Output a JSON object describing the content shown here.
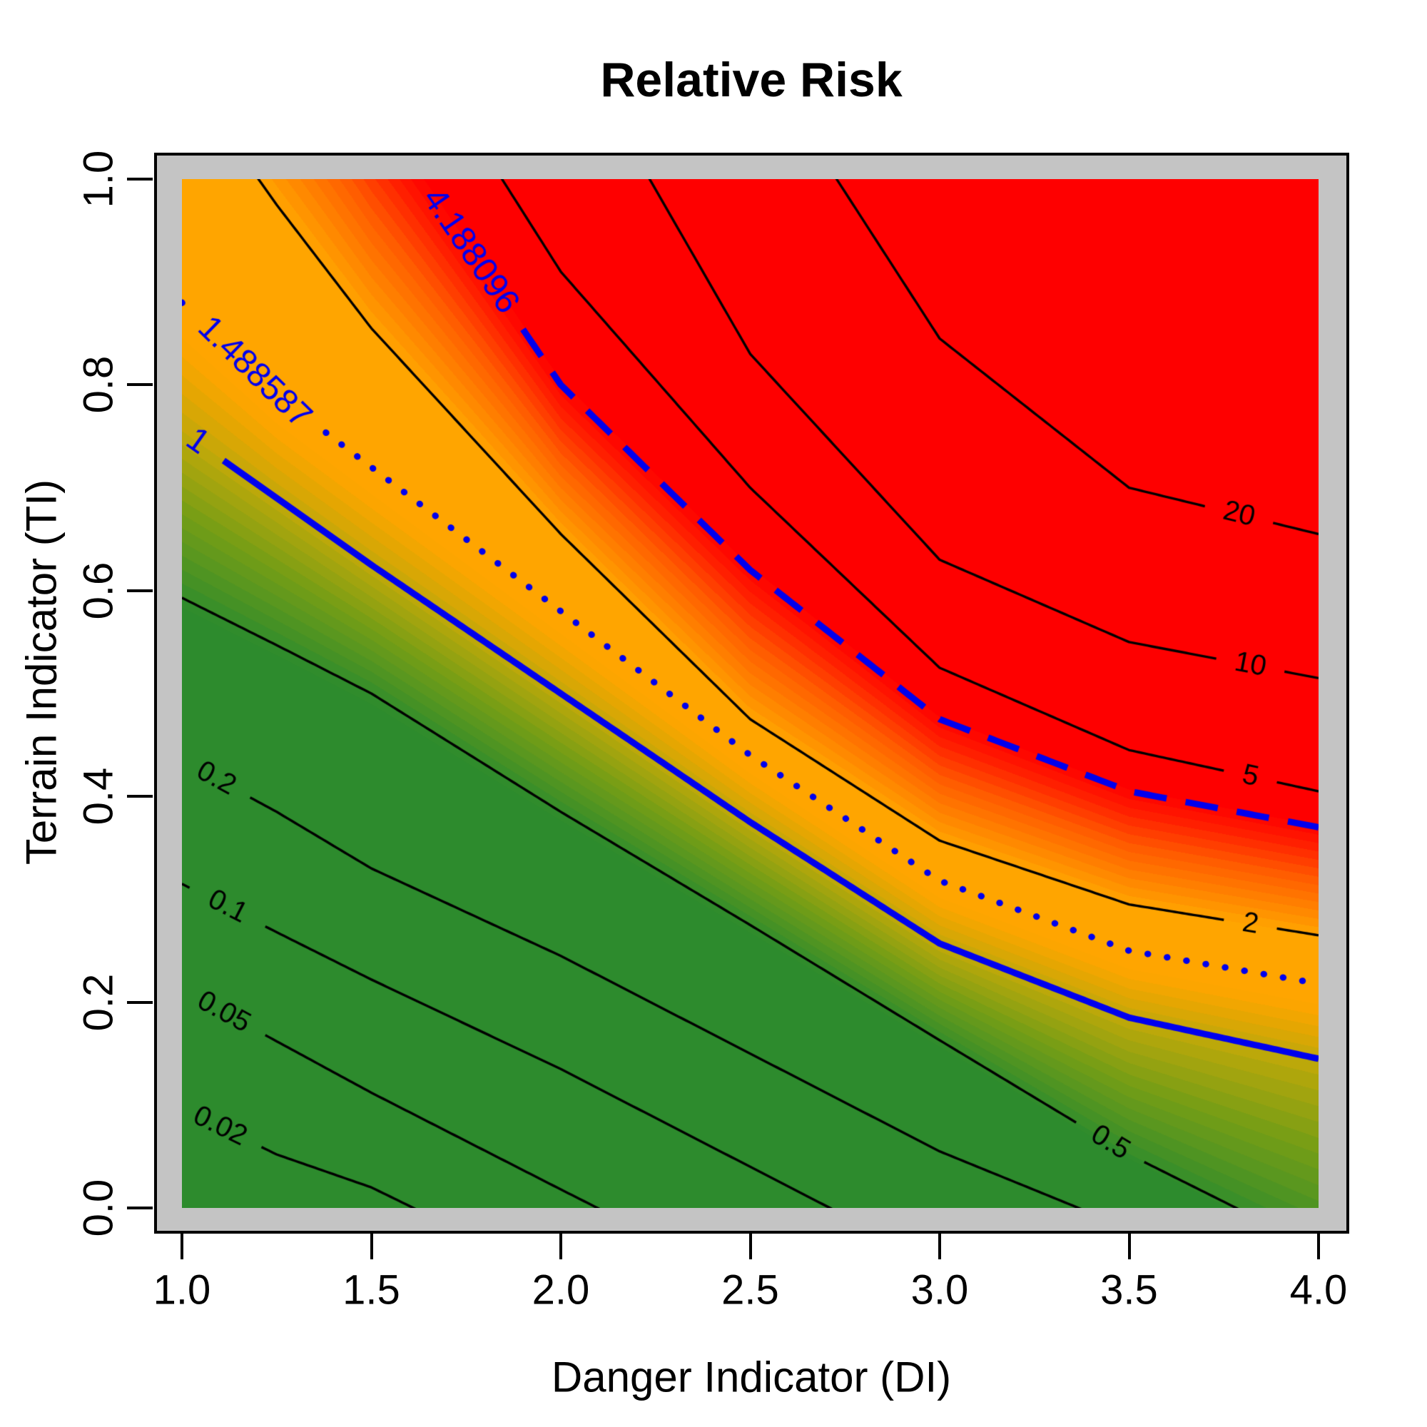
{
  "chart_data": {
    "type": "heatmap",
    "subtype": "filled-contour",
    "title": "Relative Risk",
    "xlabel": "Danger Indicator (DI)",
    "ylabel": "Terrain Indicator (TI)",
    "xlim": [
      1.0,
      4.0
    ],
    "ylim": [
      0.0,
      1.0
    ],
    "grid": false,
    "legend": "none",
    "x_ticks": [
      1.0,
      1.5,
      2.0,
      2.5,
      3.0,
      3.5,
      4.0
    ],
    "x_tick_labels": [
      "1.0",
      "1.5",
      "2.0",
      "2.5",
      "3.0",
      "3.5",
      "4.0"
    ],
    "y_ticks": [
      0.0,
      0.2,
      0.4,
      0.6,
      0.8,
      1.0
    ],
    "y_tick_labels": [
      "0.0",
      "0.2",
      "0.4",
      "0.6",
      "0.8",
      "1.0"
    ],
    "u_grid": [
      1,
      1.25,
      1.5,
      2,
      2.5,
      3,
      3.5,
      4
    ],
    "contours": [
      {
        "level": 0.02,
        "label": "0.02",
        "color": "black",
        "style": "solid",
        "width": "thin",
        "label_u": 1.1,
        "v": [
          0.097,
          0.052,
          0.02,
          -0.07,
          -0.16,
          -0.25,
          -0.34,
          -0.43
        ]
      },
      {
        "level": 0.05,
        "label": "0.05",
        "color": "black",
        "style": "solid",
        "width": "thin",
        "label_u": 1.11,
        "v": [
          0.212,
          0.162,
          0.112,
          0.018,
          -0.075,
          -0.17,
          -0.265,
          -0.36
        ]
      },
      {
        "level": 0.1,
        "label": "0.1",
        "color": "black",
        "style": "solid",
        "width": "thin",
        "label_u": 1.12,
        "v": [
          0.315,
          0.268,
          0.222,
          0.135,
          0.04,
          -0.055,
          -0.15,
          -0.245
        ]
      },
      {
        "level": 0.2,
        "label": "0.2",
        "color": "black",
        "style": "solid",
        "width": "thin",
        "label_u": 1.09,
        "v": [
          0.435,
          0.385,
          0.33,
          0.245,
          0.15,
          0.055,
          -0.02,
          -0.095
        ]
      },
      {
        "level": 0.5,
        "label": "0.5",
        "color": "black",
        "style": "solid",
        "width": "thin",
        "label_u": 3.45,
        "v": [
          0.593,
          0.547,
          0.5,
          0.385,
          0.275,
          0.163,
          0.052,
          -0.04
        ]
      },
      {
        "level": 1,
        "label": "1",
        "color": "blue",
        "style": "solid",
        "width": "thick",
        "label_u": 1.045,
        "v": [
          0.755,
          0.69,
          0.625,
          0.5,
          0.375,
          0.257,
          0.185,
          0.145
        ]
      },
      {
        "level": 1.488587,
        "label": "1.488587",
        "color": "blue",
        "style": "dotted",
        "width": "thick",
        "label_u": 1.19,
        "v": [
          0.88,
          0.79,
          0.72,
          0.58,
          0.44,
          0.318,
          0.25,
          0.218
        ]
      },
      {
        "level": 2,
        "label": "2",
        "color": "black",
        "style": "solid",
        "width": "thin",
        "label_u": 3.82,
        "v": [
          1.105,
          0.975,
          0.855,
          0.655,
          0.475,
          0.357,
          0.295,
          0.265
        ]
      },
      {
        "level": 4.188096,
        "label": "4.188096",
        "color": "blue",
        "style": "dashed",
        "width": "thick",
        "label_u": 1.76,
        "v": [
          1.38,
          1.22,
          1.07,
          0.8,
          0.62,
          0.475,
          0.405,
          0.37
        ]
      },
      {
        "level": 5,
        "label": "5",
        "color": "black",
        "style": "solid",
        "width": "thin",
        "label_u": 3.82,
        "v": [
          1.55,
          1.37,
          1.2,
          0.91,
          0.7,
          0.525,
          0.445,
          0.405
        ]
      },
      {
        "level": 10,
        "label": "10",
        "color": "black",
        "style": "solid",
        "width": "thin",
        "label_u": 3.82,
        "v": [
          1.95,
          1.72,
          1.5,
          1.15,
          0.83,
          0.63,
          0.55,
          0.515
        ]
      },
      {
        "level": 20,
        "label": "20",
        "color": "black",
        "style": "solid",
        "width": "thin",
        "label_u": 3.79,
        "v": [
          2.4,
          2.12,
          1.85,
          1.45,
          1.13,
          0.845,
          0.7,
          0.655
        ]
      }
    ],
    "fill": {
      "scale": "log10",
      "flat_green_below": -0.32,
      "green_to_orange_ramp": [
        -0.32,
        0.12
      ],
      "flat_orange_range": [
        0.12,
        0.3
      ],
      "orange_to_red_ramp": [
        0.3,
        0.63
      ],
      "flat_red_above": 0.63,
      "band_step": 0.025,
      "palette": {
        "green": "#2d8b2d",
        "olive": "#769e16",
        "gold": "#bca80a",
        "orange": "#ffa500",
        "orangered": "#ff5c00",
        "red": "#fe0000"
      }
    },
    "colors": {
      "contour_black": "#000000",
      "contour_blue": "#0000ee",
      "frame_border": "#000000",
      "margin_gray": "#c4c4c4",
      "background": "#ffffff"
    }
  }
}
